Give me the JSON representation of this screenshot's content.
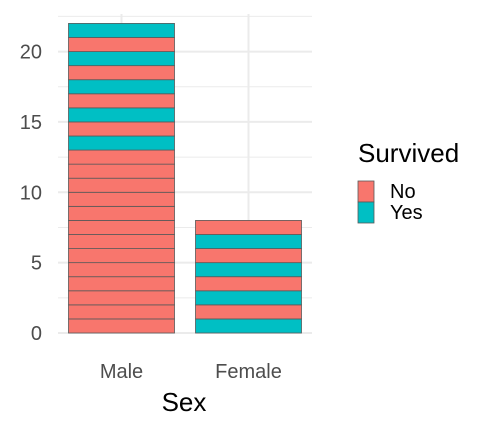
{
  "chart_data": {
    "type": "bar",
    "stacked": true,
    "stack_unit": "individual",
    "categories": [
      "Male",
      "Female"
    ],
    "stack_order": [
      [
        "No",
        "No",
        "No",
        "No",
        "No",
        "No",
        "No",
        "No",
        "No",
        "No",
        "No",
        "No",
        "No",
        "Yes",
        "No",
        "Yes",
        "No",
        "Yes",
        "No",
        "Yes",
        "No",
        "Yes"
      ],
      [
        "Yes",
        "No",
        "Yes",
        "No",
        "Yes",
        "No",
        "Yes",
        "No"
      ]
    ],
    "series": [
      {
        "name": "No",
        "values": [
          17,
          4
        ],
        "color": "#F8766D"
      },
      {
        "name": "Yes",
        "values": [
          5,
          4
        ],
        "color": "#00BFC4"
      }
    ],
    "xlabel": "Sex",
    "ylabel": "",
    "ylim": [
      0,
      22
    ],
    "yticks": [
      0,
      5,
      10,
      15,
      20
    ],
    "grid": true,
    "legend": {
      "title": "Survived",
      "position": "right",
      "entries": [
        "No",
        "Yes"
      ]
    }
  }
}
